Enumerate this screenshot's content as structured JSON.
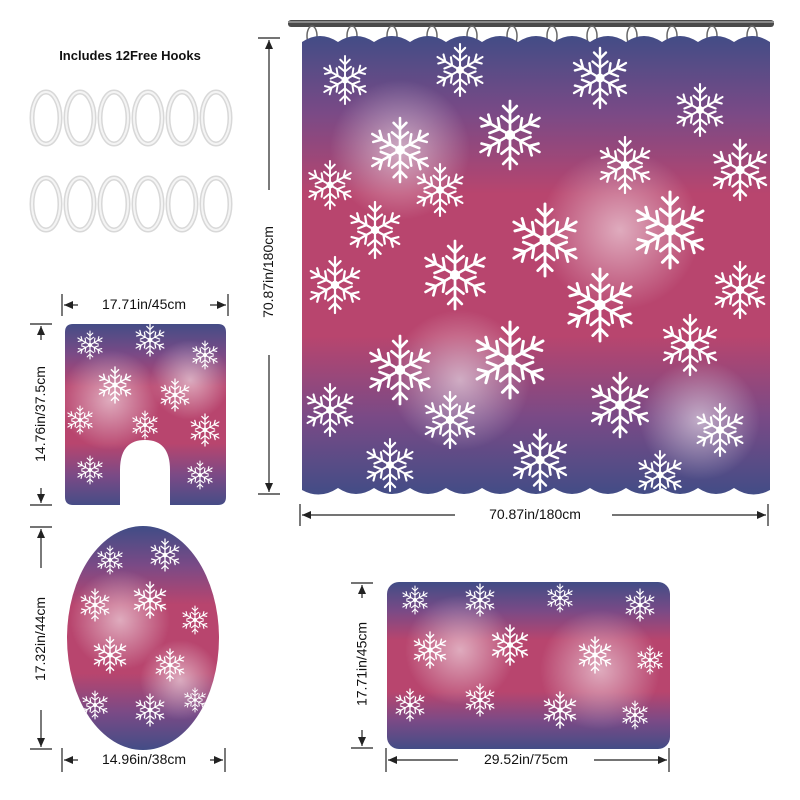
{
  "hooks": {
    "title": "Includes 12Free Hooks",
    "count": 12
  },
  "curtain": {
    "width_label": "70.87in/180cm",
    "height_label": "70.87in/180cm"
  },
  "contour_mat": {
    "width_label": "17.71in/45cm",
    "height_label": "14.76in/37.5cm"
  },
  "lid_cover": {
    "width_label": "14.96in/38cm",
    "height_label": "17.32in/44cm"
  },
  "bath_mat": {
    "width_label": "29.52in/75cm",
    "height_label": "17.71in/45cm"
  },
  "colors": {
    "pink": "#b8456e",
    "navy": "#3f4f86",
    "snow": "#ffffff"
  }
}
